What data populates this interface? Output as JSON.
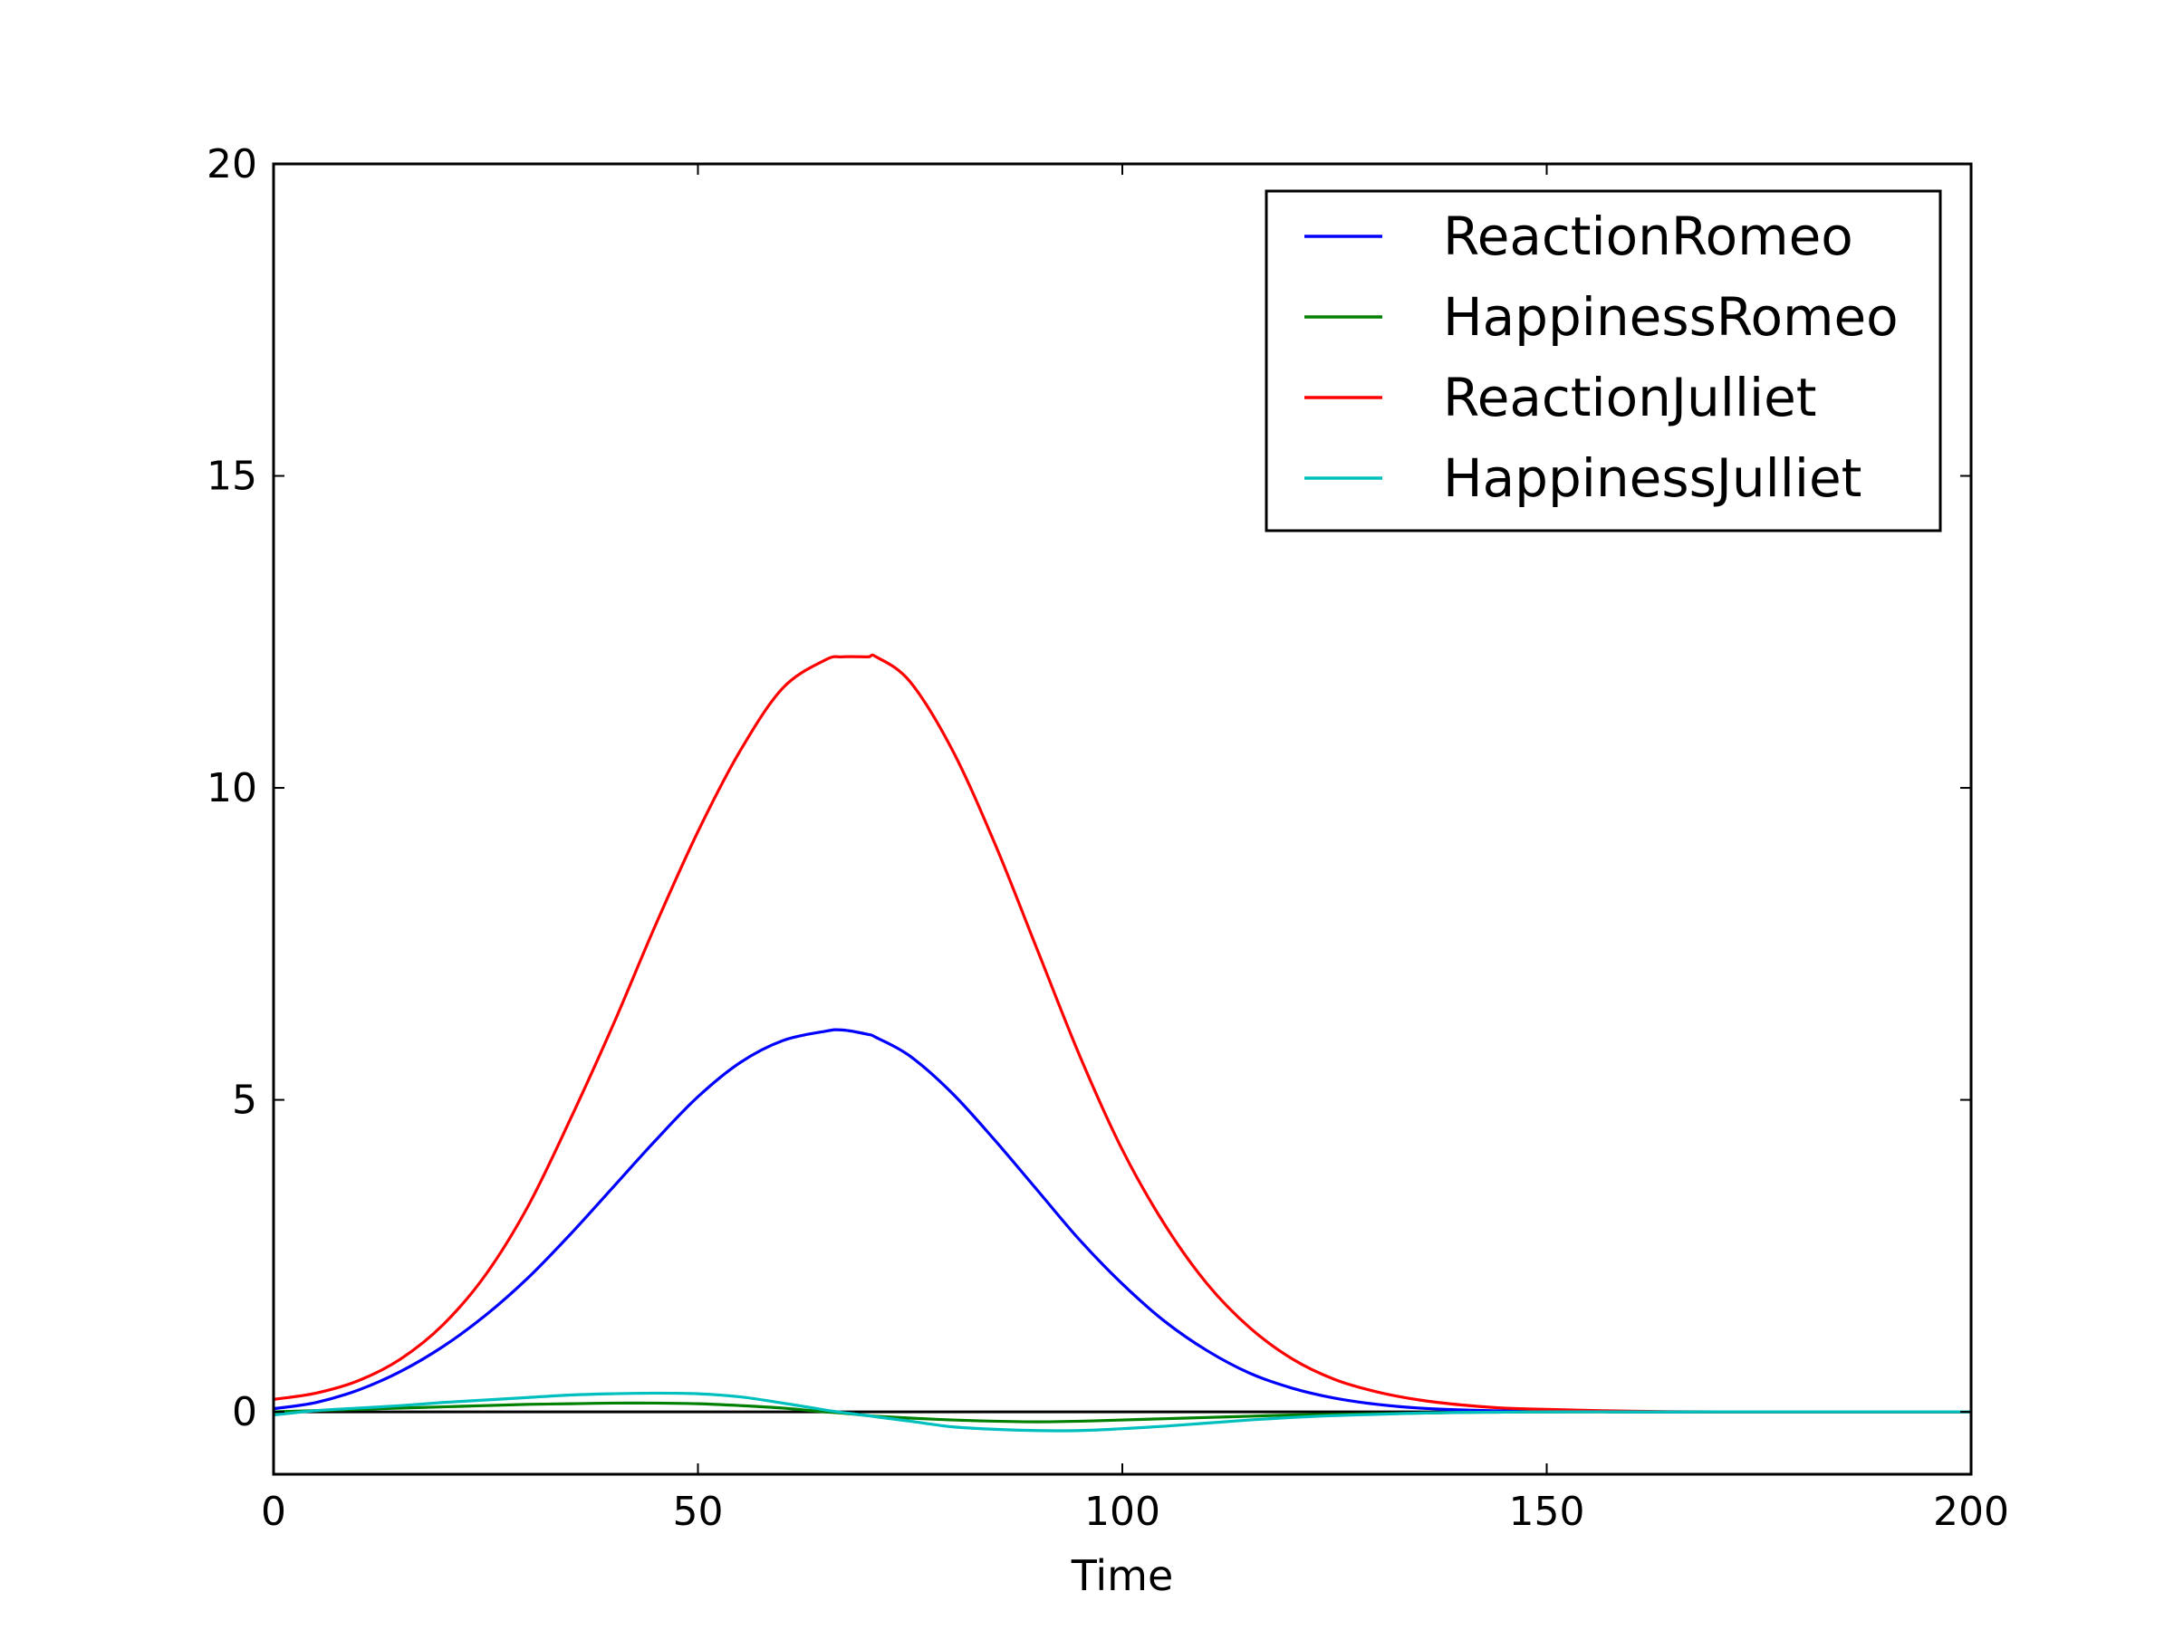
{
  "chart_data": {
    "type": "line",
    "title": "",
    "xlabel": "Time",
    "ylabel": "",
    "xlim": [
      0,
      200
    ],
    "ylim": [
      -1,
      20
    ],
    "xticks": [
      0,
      50,
      100,
      150,
      200
    ],
    "yticks": [
      0,
      5,
      10,
      15,
      20
    ],
    "grid": false,
    "legend_position": "top-right",
    "baseline": {
      "y": 0,
      "color": "#000000"
    },
    "x": [
      0,
      5,
      10,
      15,
      20,
      25,
      30,
      35,
      40,
      45,
      50,
      55,
      60,
      65,
      67,
      70,
      71,
      75,
      80,
      85,
      90,
      95,
      100,
      105,
      110,
      115,
      120,
      125,
      130,
      135,
      140,
      145,
      150,
      160,
      170,
      180,
      190,
      200
    ],
    "series": [
      {
        "name": "ReactionRomeo",
        "color": "#0000ff",
        "values": [
          0.05,
          0.15,
          0.35,
          0.65,
          1.05,
          1.55,
          2.15,
          2.85,
          3.6,
          4.35,
          5.05,
          5.6,
          5.95,
          6.1,
          6.12,
          6.05,
          6.0,
          5.7,
          5.1,
          4.35,
          3.55,
          2.75,
          2.05,
          1.45,
          0.98,
          0.62,
          0.38,
          0.22,
          0.12,
          0.06,
          0.03,
          0.015,
          0.01,
          0.0,
          0.0,
          0.0,
          0.0,
          0.0
        ]
      },
      {
        "name": "HappinessRomeo",
        "color": "#008000",
        "values": [
          0.0,
          0.02,
          0.04,
          0.06,
          0.08,
          0.1,
          0.12,
          0.13,
          0.14,
          0.14,
          0.13,
          0.1,
          0.06,
          0.0,
          -0.02,
          -0.06,
          -0.07,
          -0.1,
          -0.13,
          -0.15,
          -0.16,
          -0.15,
          -0.13,
          -0.11,
          -0.09,
          -0.07,
          -0.05,
          -0.04,
          -0.03,
          -0.02,
          -0.01,
          -0.005,
          0.0,
          0.0,
          0.0,
          0.0,
          0.0,
          0.0
        ]
      },
      {
        "name": "ReactionJulliet",
        "color": "#ff0000",
        "values": [
          0.2,
          0.3,
          0.5,
          0.85,
          1.4,
          2.2,
          3.3,
          4.7,
          6.2,
          7.8,
          9.3,
          10.6,
          11.6,
          12.05,
          12.1,
          12.1,
          12.1,
          11.7,
          10.6,
          9.1,
          7.4,
          5.7,
          4.2,
          3.0,
          2.05,
          1.35,
          0.85,
          0.52,
          0.32,
          0.19,
          0.11,
          0.06,
          0.04,
          0.01,
          0.0,
          0.0,
          0.0,
          0.0
        ]
      },
      {
        "name": "HappinessJulliet",
        "color": "#00bfbf",
        "values": [
          -0.05,
          0.02,
          0.06,
          0.1,
          0.15,
          0.19,
          0.23,
          0.27,
          0.29,
          0.3,
          0.29,
          0.24,
          0.14,
          0.03,
          -0.01,
          -0.06,
          -0.08,
          -0.15,
          -0.24,
          -0.28,
          -0.3,
          -0.3,
          -0.27,
          -0.23,
          -0.18,
          -0.13,
          -0.09,
          -0.06,
          -0.04,
          -0.02,
          -0.01,
          -0.005,
          0.0,
          0.0,
          0.0,
          0.0,
          0.0,
          0.0
        ]
      }
    ]
  }
}
